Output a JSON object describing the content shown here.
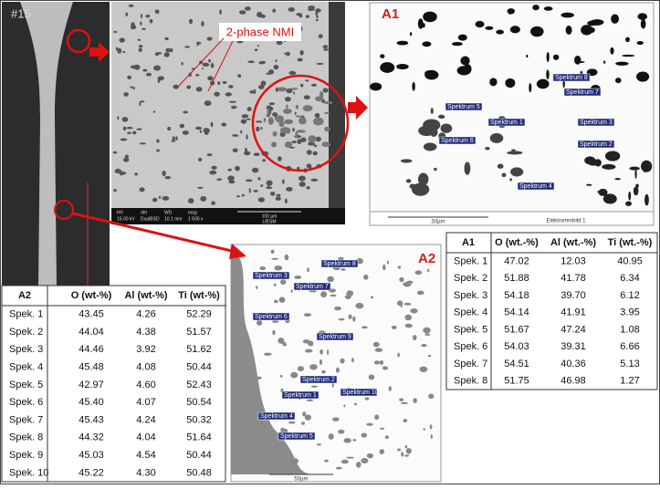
{
  "labels": {
    "sample": "#15",
    "nmi": "2-phase NMI",
    "a1": "A1",
    "a2": "A2"
  },
  "sem_info": {
    "headers": [
      "HV",
      "det",
      "WD",
      "mag"
    ],
    "values": [
      "15.00 kV",
      "DualBSD",
      "10.1 mm",
      "1 500 x"
    ],
    "scale": "100 µm",
    "lab": "LfESM"
  },
  "a1_image": {
    "scale": "30µm",
    "caption": "Elektronenbild 1",
    "spectra": [
      "Spektrum 8",
      "Spektrum 7",
      "Spektrum 5",
      "Spektrum 1",
      "Spektrum 3",
      "Spektrum 2",
      "Spektrum 6",
      "Spektrum 4"
    ]
  },
  "a2_image": {
    "scale": "50µm",
    "spectra": [
      "Spektrum 8",
      "Spektrum 3",
      "Spektrum 7",
      "Spektrum 6",
      "Spektrum 9",
      "Spektrum 2",
      "Spektrum 1",
      "Spektrum 10",
      "Spektrum 4",
      "Spektrum 5"
    ]
  },
  "table_a1": {
    "header": [
      "A1",
      "O (wt.-%)",
      "Al (wt.-%)",
      "Ti (wt.-%)"
    ],
    "rows": [
      [
        "Spek. 1",
        "47.02",
        "12.03",
        "40.95"
      ],
      [
        "Spek. 2",
        "51.88",
        "41.78",
        "6.34"
      ],
      [
        "Spek. 3",
        "54.18",
        "39.70",
        "6.12"
      ],
      [
        "Spek. 4",
        "54.14",
        "41.91",
        "3.95"
      ],
      [
        "Spek. 5",
        "51.67",
        "47.24",
        "1.08"
      ],
      [
        "Spek. 6",
        "54.03",
        "39.31",
        "6.66"
      ],
      [
        "Spek. 7",
        "54.51",
        "40.36",
        "5.13"
      ],
      [
        "Spek. 8",
        "51.75",
        "46.98",
        "1.27"
      ]
    ]
  },
  "table_a2": {
    "header": [
      "A2",
      "O (wt-%)",
      "Al (wt-%)",
      "Ti (wt-%)"
    ],
    "rows": [
      [
        "Spek. 1",
        "43.45",
        "4.26",
        "52.29"
      ],
      [
        "Spek. 2",
        "44.04",
        "4.38",
        "51.57"
      ],
      [
        "Spek. 3",
        "44.46",
        "3.92",
        "51.62"
      ],
      [
        "Spek. 4",
        "45.48",
        "4.08",
        "50.44"
      ],
      [
        "Spek. 5",
        "42.97",
        "4.60",
        "52.43"
      ],
      [
        "Spek. 6",
        "45.40",
        "4.07",
        "50.54"
      ],
      [
        "Spek. 7",
        "45.43",
        "4.24",
        "50.32"
      ],
      [
        "Spek. 8",
        "44.32",
        "4.04",
        "51.64"
      ],
      [
        "Spek. 9",
        "45.03",
        "4.54",
        "50.44"
      ],
      [
        "Spek. 10",
        "45.22",
        "4.30",
        "50.48"
      ]
    ]
  }
}
